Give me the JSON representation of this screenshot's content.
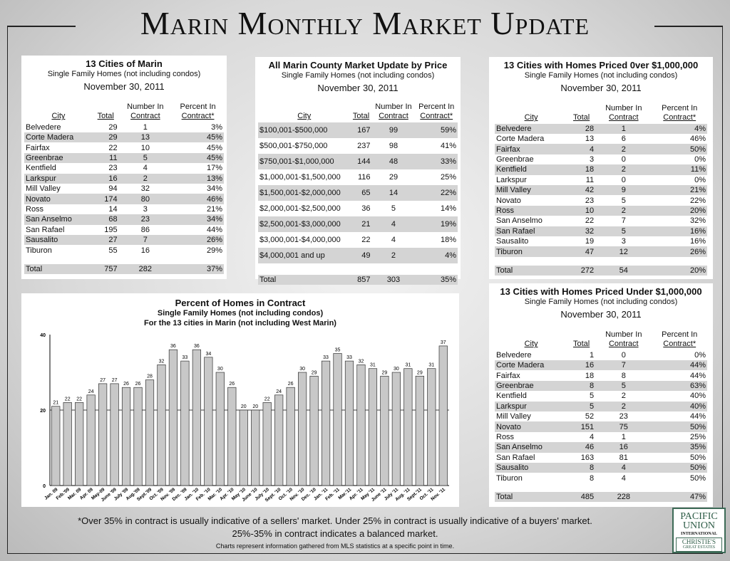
{
  "title": "Marin Monthly Market Update",
  "headers": {
    "city": "City",
    "total": "Total",
    "num1": "Number In",
    "num2": "Contract",
    "pct1": "Percent In",
    "pct2": "Contract*"
  },
  "subtitle": "Single Family Homes (not including condos)",
  "date": "November 30, 2011",
  "tables": [
    {
      "title": "13 Cities of Marin",
      "stripe_start": 1,
      "rows": [
        [
          "Belvedere",
          "29",
          "1",
          "3%"
        ],
        [
          "Corte Madera",
          "29",
          "13",
          "45%"
        ],
        [
          "Fairfax",
          "22",
          "10",
          "45%"
        ],
        [
          "Greenbrae",
          "11",
          "5",
          "45%"
        ],
        [
          "Kentfield",
          "23",
          "4",
          "17%"
        ],
        [
          "Larkspur",
          "16",
          "2",
          "13%"
        ],
        [
          "Mill Valley",
          "94",
          "32",
          "34%"
        ],
        [
          "Novato",
          "174",
          "80",
          "46%"
        ],
        [
          "Ross",
          "14",
          "3",
          "21%"
        ],
        [
          "San Anselmo",
          "68",
          "23",
          "34%"
        ],
        [
          "San Rafael",
          "195",
          "86",
          "44%"
        ],
        [
          "Sausalito",
          "27",
          "7",
          "26%"
        ],
        [
          "Tiburon",
          "55",
          "16",
          "29%"
        ]
      ],
      "total": [
        "Total",
        "757",
        "282",
        "37%"
      ]
    },
    {
      "title": "All Marin County Market Update by Price",
      "stripe_start": 0,
      "rows": [
        [
          "$100,001-$500,000",
          "167",
          "99",
          "59%"
        ],
        [
          "$500,001-$750,000",
          "237",
          "98",
          "41%"
        ],
        [
          "$750,001-$1,000,000",
          "144",
          "48",
          "33%"
        ],
        [
          "$1,000,001-$1,500,000",
          "116",
          "29",
          "25%"
        ],
        [
          "$1,500,001-$2,000,000",
          "65",
          "14",
          "22%"
        ],
        [
          "$2,000,001-$2,500,000",
          "36",
          "5",
          "14%"
        ],
        [
          "$2,500,001-$3,000,000",
          "21",
          "4",
          "19%"
        ],
        [
          "$3,000,001-$4,000,000",
          "22",
          "4",
          "18%"
        ],
        [
          "$4,000,001 and up",
          "49",
          "2",
          "4%"
        ]
      ],
      "total": [
        "Total",
        "857",
        "303",
        "35%"
      ]
    },
    {
      "title": "13 Cities with Homes Priced 0ver $1,000,000",
      "stripe_start": 0,
      "rows": [
        [
          "Belvedere",
          "28",
          "1",
          "4%"
        ],
        [
          "Corte Madera",
          "13",
          "6",
          "46%"
        ],
        [
          "Fairfax",
          "4",
          "2",
          "50%"
        ],
        [
          "Greenbrae",
          "3",
          "0",
          "0%"
        ],
        [
          "Kentfield",
          "18",
          "2",
          "11%"
        ],
        [
          "Larkspur",
          "11",
          "0",
          "0%"
        ],
        [
          "Mill Valley",
          "42",
          "9",
          "21%"
        ],
        [
          "Novato",
          "23",
          "5",
          "22%"
        ],
        [
          "Ross",
          "10",
          "2",
          "20%"
        ],
        [
          "San Anselmo",
          "22",
          "7",
          "32%"
        ],
        [
          "San Rafael",
          "32",
          "5",
          "16%"
        ],
        [
          "Sausalito",
          "19",
          "3",
          "16%"
        ],
        [
          "Tiburon",
          "47",
          "12",
          "26%"
        ]
      ],
      "total": [
        "Total",
        "272",
        "54",
        "20%"
      ]
    },
    {
      "title": "13 Cities with Homes Priced Under $1,000,000",
      "stripe_start": 1,
      "rows": [
        [
          "Belvedere",
          "1",
          "0",
          "0%"
        ],
        [
          "Corte Madera",
          "16",
          "7",
          "44%"
        ],
        [
          "Fairfax",
          "18",
          "8",
          "44%"
        ],
        [
          "Greenbrae",
          "8",
          "5",
          "63%"
        ],
        [
          "Kentfield",
          "5",
          "2",
          "40%"
        ],
        [
          "Larkspur",
          "5",
          "2",
          "40%"
        ],
        [
          "Mill Valley",
          "52",
          "23",
          "44%"
        ],
        [
          "Novato",
          "151",
          "75",
          "50%"
        ],
        [
          "Ross",
          "4",
          "1",
          "25%"
        ],
        [
          "San Anselmo",
          "46",
          "16",
          "35%"
        ],
        [
          "San Rafael",
          "163",
          "81",
          "50%"
        ],
        [
          "Sausalito",
          "8",
          "4",
          "50%"
        ],
        [
          "Tiburon",
          "8",
          "4",
          "50%"
        ]
      ],
      "total": [
        "Total",
        "485",
        "228",
        "47%"
      ]
    }
  ],
  "chart_data": {
    "type": "bar",
    "title": "Percent of Homes in Contract",
    "subtitle": "Single Family Homes (not including condos)",
    "subtitle2": "For the 13 cities in Marin (not including West Marin)",
    "categories": [
      "Jan. 09",
      "Feb.'09",
      "Mar. 09",
      "Apr. 09",
      "May-09",
      "June '09",
      "July '09",
      "Aug.'09",
      "Sept.'09",
      "Oct. '09",
      "Nov. '09",
      "Dec. '09",
      "Jan. '10",
      "Feb. '10",
      "Mar. '10",
      "Apr. '10",
      "May '10",
      "June '10",
      "July '10",
      "Sept. '10",
      "Oct. '10",
      "Nov. '10",
      "Dec. '10",
      "Jan. '11",
      "Feb. '11",
      "Mar.'11",
      "Apr. '11",
      "May '11",
      "June '11",
      "July '11",
      "Aug. '11",
      "Sept.'11",
      "Oct. '11",
      "Nov. '11"
    ],
    "values": [
      21,
      22,
      22,
      24,
      27,
      27,
      26,
      26,
      28,
      32,
      36,
      33,
      36,
      34,
      30,
      26,
      20,
      20,
      22,
      24,
      26,
      30,
      29,
      33,
      35,
      33,
      32,
      31,
      29,
      30,
      31,
      29,
      31,
      37
    ],
    "yticks": [
      "0",
      "20",
      "40"
    ],
    "ylim": [
      0,
      40
    ],
    "gridline": 20,
    "bar_color": "#c8c8c8"
  },
  "footer": {
    "line1": "*Over 35% in contract is usually indicative of a sellers' market.  Under 25% in contract is usually indicative of a buyers' market.",
    "line2": "25%-35% in contract indicates a balanced market.",
    "line3": "Charts represent information gathered from MLS statistics at a specific point in time."
  },
  "logo": {
    "l1": "PACIFIC",
    "l2": "UNION",
    "l3": "INTERNATIONAL",
    "l4": "CHRISTIE'S",
    "l5": "GREAT ESTATES"
  }
}
